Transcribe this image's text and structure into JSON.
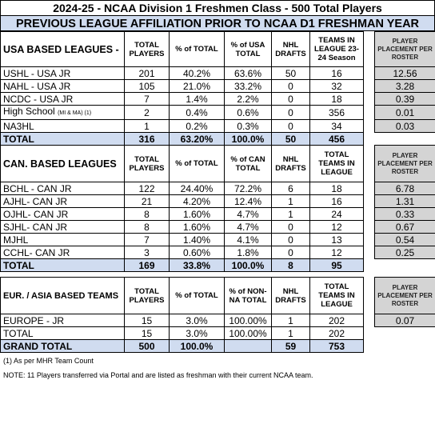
{
  "title": "2024-25 - NCAA Division 1 Freshmen Class - 500 Total Players",
  "subtitle": "PREVIOUS LEAGUE AFFILIATION PRIOR TO NCAA D1 FRESHMAN YEAR",
  "usa": {
    "headers": [
      "USA BASED LEAGUES -",
      "TOTAL PLAYERS",
      "% of TOTAL",
      "% of USA TOTAL",
      "NHL DRAFTS",
      "TEAMS IN LEAGUE 23-24 Season",
      "PLAYER PLACEMENT PER ROSTER"
    ],
    "rows": [
      {
        "league": "USHL - USA JR",
        "league_note": "",
        "players": "201",
        "pct_total": "40.2%",
        "pct_group": "63.6%",
        "drafts": "50",
        "teams": "16",
        "placement": "12.56"
      },
      {
        "league": "NAHL - USA JR",
        "league_note": "",
        "players": "105",
        "pct_total": "21.0%",
        "pct_group": "33.2%",
        "drafts": "0",
        "teams": "32",
        "placement": "3.28"
      },
      {
        "league": "NCDC - USA JR",
        "league_note": "",
        "players": "7",
        "pct_total": "1.4%",
        "pct_group": "2.2%",
        "drafts": "0",
        "teams": "18",
        "placement": "0.39"
      },
      {
        "league": "High School",
        "league_note": "(MI & MA) (1)",
        "players": "2",
        "pct_total": "0.4%",
        "pct_group": "0.6%",
        "drafts": "0",
        "teams": "356",
        "placement": "0.01"
      },
      {
        "league": "NA3HL",
        "league_note": "",
        "players": "1",
        "pct_total": "0.2%",
        "pct_group": "0.3%",
        "drafts": "0",
        "teams": "34",
        "placement": "0.03"
      }
    ],
    "total": {
      "label": "TOTAL",
      "players": "316",
      "pct_total": "63.20%",
      "pct_group": "100.0%",
      "drafts": "50",
      "teams": "456"
    }
  },
  "can": {
    "headers": [
      "CAN. BASED LEAGUES",
      "TOTAL PLAYERS",
      "% of TOTAL",
      "% of CAN TOTAL",
      "NHL DRAFTS",
      "TOTAL TEAMS IN LEAGUE",
      "PLAYER PLACEMENT PER ROSTER"
    ],
    "rows": [
      {
        "league": "BCHL - CAN JR",
        "players": "122",
        "pct_total": "24.40%",
        "pct_group": "72.2%",
        "drafts": "6",
        "teams": "18",
        "placement": "6.78"
      },
      {
        "league": "AJHL- CAN JR",
        "players": "21",
        "pct_total": "4.20%",
        "pct_group": "12.4%",
        "drafts": "1",
        "teams": "16",
        "placement": "1.31"
      },
      {
        "league": "OJHL- CAN JR",
        "players": "8",
        "pct_total": "1.60%",
        "pct_group": "4.7%",
        "drafts": "1",
        "teams": "24",
        "placement": "0.33"
      },
      {
        "league": "SJHL- CAN JR",
        "players": "8",
        "pct_total": "1.60%",
        "pct_group": "4.7%",
        "drafts": "0",
        "teams": "12",
        "placement": "0.67"
      },
      {
        "league": "MJHL",
        "players": "7",
        "pct_total": "1.40%",
        "pct_group": "4.1%",
        "drafts": "0",
        "teams": "13",
        "placement": "0.54"
      },
      {
        "league": "CCHL- CAN JR",
        "players": "3",
        "pct_total": "0.60%",
        "pct_group": "1.8%",
        "drafts": "0",
        "teams": "12",
        "placement": "0.25"
      }
    ],
    "total": {
      "label": "TOTAL",
      "players": "169",
      "pct_total": "33.8%",
      "pct_group": "100.0%",
      "drafts": "8",
      "teams": "95"
    }
  },
  "eur": {
    "headers": [
      "EUR. / ASIA BASED TEAMS",
      "TOTAL PLAYERS",
      "% of TOTAL",
      "% of NON-NA TOTAL",
      "NHL DRAFTS",
      "TOTAL TEAMS IN LEAGUE",
      "PLAYER PLACEMENT PER ROSTER"
    ],
    "rows": [
      {
        "league": "EUROPE - JR",
        "players": "15",
        "pct_total": "3.0%",
        "pct_group": "100.00%",
        "drafts": "1",
        "teams": "202",
        "placement": "0.07"
      }
    ],
    "total": {
      "label": "TOTAL",
      "players": "15",
      "pct_total": "3.0%",
      "pct_group": "100.00%",
      "drafts": "1",
      "teams": "202"
    }
  },
  "grand_total": {
    "label": "GRAND TOTAL",
    "players": "500",
    "pct_total": "100.0%",
    "drafts": "59",
    "teams": "753"
  },
  "notes": [
    "(1) As per MHR Team Count",
    "NOTE: 11 Players transferred via Portal and are listed as freshman with their current NCAA team."
  ],
  "colors": {
    "header_blue": "#d0dcf0",
    "placement_gray": "#d4d4d4",
    "grand_total_dark": "#7f7f7f"
  }
}
